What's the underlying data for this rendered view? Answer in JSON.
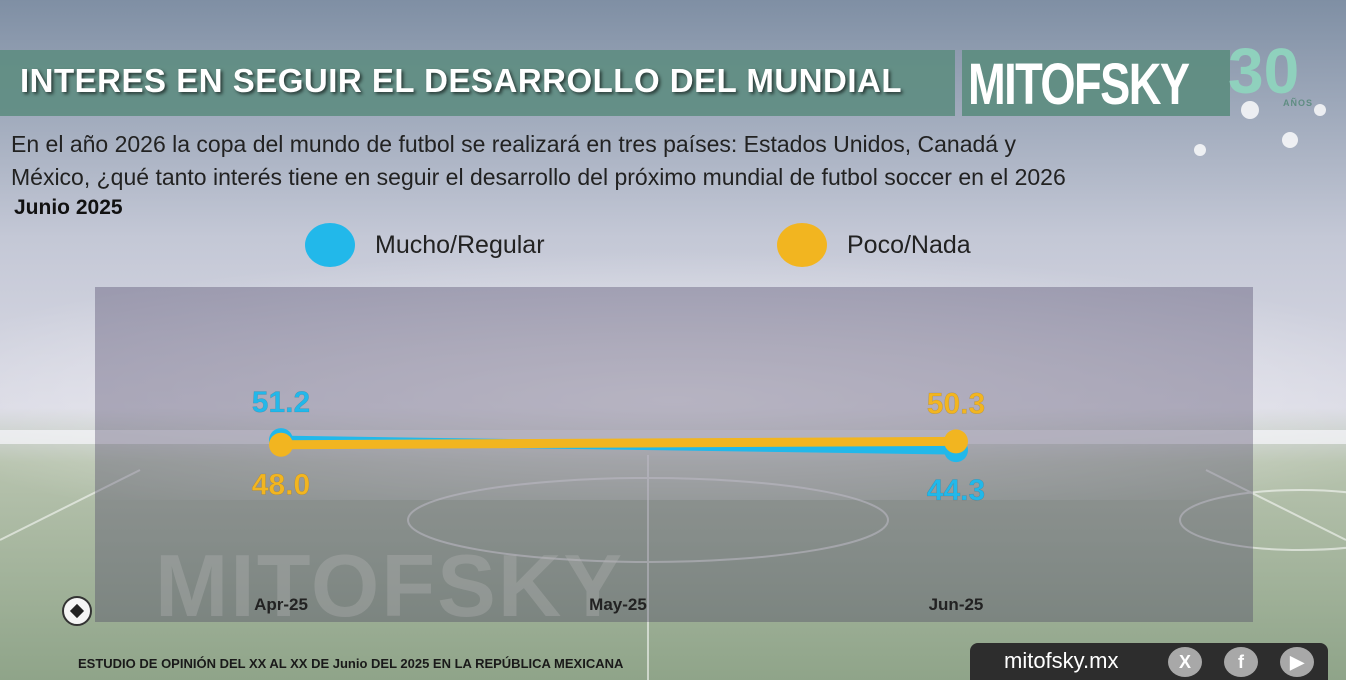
{
  "header": {
    "title": "INTERES EN SEGUIR EL DESARROLLO DEL MUNDIAL",
    "logo_text": "MITOFSKY",
    "logo_number": "30",
    "logo_sub": "AÑOS"
  },
  "question": {
    "line1": "En el año 2026 la copa del mundo de futbol se realizará en tres países:  Estados Unidos, Canadá y",
    "line2": "México, ¿qué tanto interés tiene en seguir el desarrollo del próximo mundial de futbol soccer en el 2026",
    "date": "Junio 2025"
  },
  "legend": [
    {
      "label": "Mucho/Regular",
      "color": "#22b8ea"
    },
    {
      "label": "Poco/Nada",
      "color": "#f2b520"
    }
  ],
  "chart_data": {
    "type": "line",
    "categories": [
      "Apr-25",
      "May-25",
      "Jun-25"
    ],
    "series": [
      {
        "name": "Mucho/Regular",
        "color": "#22b8ea",
        "points": [
          {
            "x": "Apr-25",
            "y": 51.2
          },
          {
            "x": "Jun-25",
            "y": 44.3
          }
        ]
      },
      {
        "name": "Poco/Nada",
        "color": "#f2b520",
        "points": [
          {
            "x": "Apr-25",
            "y": 48.0
          },
          {
            "x": "Jun-25",
            "y": 50.3
          }
        ]
      }
    ],
    "data_labels": [
      {
        "series": "Mucho/Regular",
        "x": "Apr-25",
        "text": "51.2",
        "placement": "above"
      },
      {
        "series": "Poco/Nada",
        "x": "Apr-25",
        "text": "48.0",
        "placement": "below"
      },
      {
        "series": "Poco/Nada",
        "x": "Jun-25",
        "text": "50.3",
        "placement": "above"
      },
      {
        "series": "Mucho/Regular",
        "x": "Jun-25",
        "text": "44.3",
        "placement": "below"
      }
    ],
    "ylim": [
      0,
      100
    ],
    "grid": false,
    "legend_position": "top"
  },
  "watermark": "MITOFSKY",
  "footer": {
    "note": "ESTUDIO DE OPINIÓN DEL XX AL XX DE Junio DEL 2025 EN LA REPÚBLICA MEXICANA",
    "url": "mitofsky.mx",
    "social": [
      {
        "icon": "x-icon",
        "glyph": "X"
      },
      {
        "icon": "facebook-icon",
        "glyph": "f"
      },
      {
        "icon": "youtube-icon",
        "glyph": "▶"
      }
    ]
  }
}
